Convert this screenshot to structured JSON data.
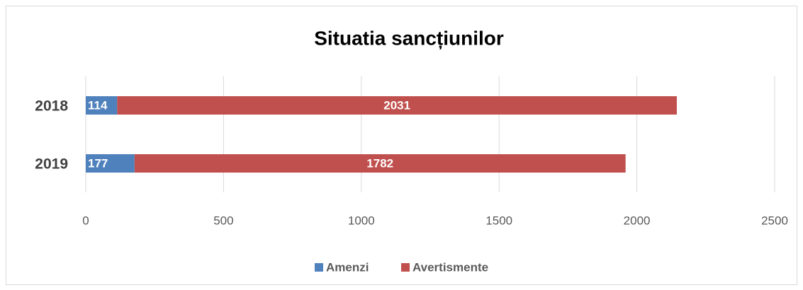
{
  "chart_data": {
    "type": "bar",
    "orientation": "horizontal",
    "stacked": true,
    "title": "Situatia sancțiunilor",
    "categories": [
      "2018",
      "2019"
    ],
    "series": [
      {
        "name": "Amenzi",
        "color": "#4f81bd",
        "values": [
          114,
          177
        ]
      },
      {
        "name": "Avertismente",
        "color": "#c0504d",
        "values": [
          2031,
          1782
        ]
      }
    ],
    "xlim": [
      0,
      2500
    ],
    "xticks": [
      0,
      500,
      1000,
      1500,
      2000,
      2500
    ],
    "grid": true,
    "legend": "bottom"
  }
}
